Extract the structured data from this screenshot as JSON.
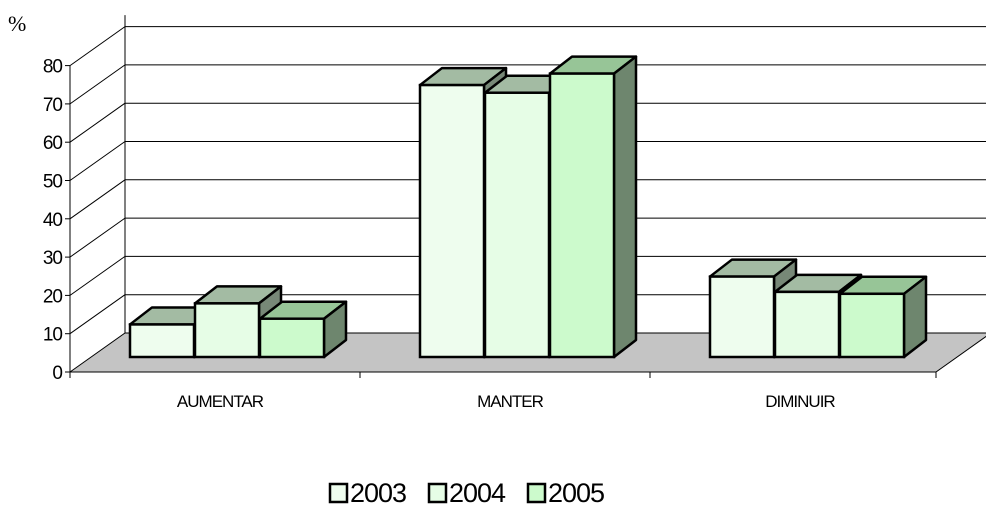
{
  "chart_data": {
    "type": "bar",
    "ylabel": "%",
    "ylim": [
      0,
      80
    ],
    "yticks": [
      0,
      10,
      20,
      30,
      40,
      50,
      60,
      70,
      80
    ],
    "categories": [
      "AUMENTAR",
      "MANTER",
      "DIMINUIR"
    ],
    "series": [
      {
        "name": "2003",
        "values": [
          8.5,
          71,
          21
        ]
      },
      {
        "name": "2004",
        "values": [
          14,
          69,
          17
        ]
      },
      {
        "name": "2005",
        "values": [
          10,
          74,
          16.5
        ]
      }
    ],
    "grid": true,
    "three_d": true,
    "legend_position": "bottom",
    "colors": {
      "series_fronts": [
        "#eefdee",
        "#e6fde6",
        "#ccfacc"
      ],
      "bar_tops": [
        "#a3bba3",
        "#a3bba3",
        "#97c597"
      ],
      "bar_sides": [
        "#778877",
        "#778877",
        "#6e866e"
      ],
      "floor": "#c4c4c4",
      "grid": "#000000"
    }
  }
}
